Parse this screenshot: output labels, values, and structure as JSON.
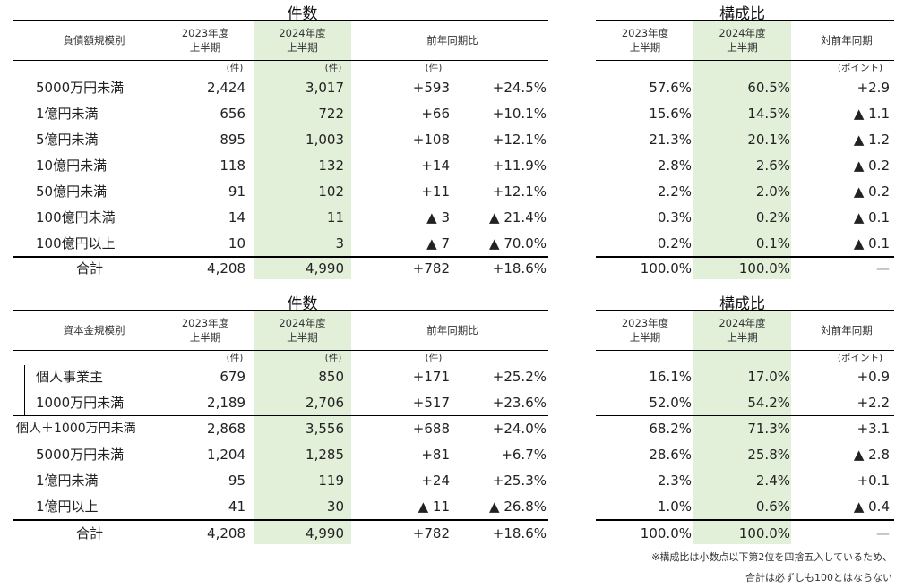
{
  "tables": [
    {
      "title_count": "件数",
      "title_ratio": "構成比",
      "header": {
        "category": "負債額規模別",
        "h2023": [
          "2023年度",
          "上半期"
        ],
        "h2024": [
          "2024年度",
          "上半期"
        ],
        "yoy": "前年同期比",
        "r2023": [
          "2023年度",
          "上半期"
        ],
        "r2024": [
          "2024年度",
          "上半期"
        ],
        "rdiff": "対前年同期"
      },
      "units": {
        "u2023": "(件)",
        "u2024": "(件)",
        "uyoy": "(件)",
        "upoint": "(ポイント)"
      },
      "rows": [
        {
          "label": "5000万円未満",
          "c2023": "2,424",
          "c2024": "3,017",
          "diff": "+593",
          "pct": "+24.5%",
          "r2023": "57.6%",
          "r2024": "60.5%",
          "rdiff": "+2.9"
        },
        {
          "label": "1億円未満",
          "c2023": "656",
          "c2024": "722",
          "diff": "+66",
          "pct": "+10.1%",
          "r2023": "15.6%",
          "r2024": "14.5%",
          "rdiff": "▲ 1.1"
        },
        {
          "label": "5億円未満",
          "c2023": "895",
          "c2024": "1,003",
          "diff": "+108",
          "pct": "+12.1%",
          "r2023": "21.3%",
          "r2024": "20.1%",
          "rdiff": "▲ 1.2"
        },
        {
          "label": "10億円未満",
          "c2023": "118",
          "c2024": "132",
          "diff": "+14",
          "pct": "+11.9%",
          "r2023": "2.8%",
          "r2024": "2.6%",
          "rdiff": "▲ 0.2"
        },
        {
          "label": "50億円未満",
          "c2023": "91",
          "c2024": "102",
          "diff": "+11",
          "pct": "+12.1%",
          "r2023": "2.2%",
          "r2024": "2.0%",
          "rdiff": "▲ 0.2"
        },
        {
          "label": "100億円未満",
          "c2023": "14",
          "c2024": "11",
          "diff": "▲ 3",
          "pct": "▲ 21.4%",
          "r2023": "0.3%",
          "r2024": "0.2%",
          "rdiff": "▲ 0.1"
        },
        {
          "label": "100億円以上",
          "c2023": "10",
          "c2024": "3",
          "diff": "▲ 7",
          "pct": "▲ 70.0%",
          "r2023": "0.2%",
          "r2024": "0.1%",
          "rdiff": "▲ 0.1"
        }
      ],
      "total": {
        "label": "合計",
        "c2023": "4,208",
        "c2024": "4,990",
        "diff": "+782",
        "pct": "+18.6%",
        "r2023": "100.0%",
        "r2024": "100.0%",
        "rdiff": "—"
      }
    },
    {
      "title_count": "件数",
      "title_ratio": "構成比",
      "header": {
        "category": "資本金規模別",
        "h2023": [
          "2023年度",
          "上半期"
        ],
        "h2024": [
          "2024年度",
          "上半期"
        ],
        "yoy": "前年同期比",
        "r2023": [
          "2023年度",
          "上半期"
        ],
        "r2024": [
          "2024年度",
          "上半期"
        ],
        "rdiff": "対前年同期"
      },
      "units": {
        "u2023": "(件)",
        "u2024": "(件)",
        "uyoy": "(件)",
        "upoint": "(ポイント)"
      },
      "rows": [
        {
          "label": "個人事業主",
          "c2023": "679",
          "c2024": "850",
          "diff": "+171",
          "pct": "+25.2%",
          "r2023": "16.1%",
          "r2024": "17.0%",
          "rdiff": "+0.9"
        },
        {
          "label": "1000万円未満",
          "c2023": "2,189",
          "c2024": "2,706",
          "diff": "+517",
          "pct": "+23.6%",
          "r2023": "52.0%",
          "r2024": "54.2%",
          "rdiff": "+2.2"
        },
        {
          "label": "個人＋1000万円未満",
          "c2023": "2,868",
          "c2024": "3,556",
          "diff": "+688",
          "pct": "+24.0%",
          "r2023": "68.2%",
          "r2024": "71.3%",
          "rdiff": "+3.1"
        },
        {
          "label": "5000万円未満",
          "c2023": "1,204",
          "c2024": "1,285",
          "diff": "+81",
          "pct": "+6.7%",
          "r2023": "28.6%",
          "r2024": "25.8%",
          "rdiff": "▲ 2.8"
        },
        {
          "label": "1億円未満",
          "c2023": "95",
          "c2024": "119",
          "diff": "+24",
          "pct": "+25.3%",
          "r2023": "2.3%",
          "r2024": "2.4%",
          "rdiff": "+0.1"
        },
        {
          "label": "1億円以上",
          "c2023": "41",
          "c2024": "30",
          "diff": "▲ 11",
          "pct": "▲ 26.8%",
          "r2023": "1.0%",
          "r2024": "0.6%",
          "rdiff": "▲ 0.4"
        }
      ],
      "total": {
        "label": "合計",
        "c2023": "4,208",
        "c2024": "4,990",
        "diff": "+782",
        "pct": "+18.6%",
        "r2023": "100.0%",
        "r2024": "100.0%",
        "rdiff": "—"
      }
    }
  ],
  "notes": [
    "※構成比は小数点以下第2位を四捨五入しているため、",
    "合計は必ずしも100とはならない"
  ],
  "colors": {
    "highlight": "#e2efd9",
    "rule": "#000000"
  }
}
